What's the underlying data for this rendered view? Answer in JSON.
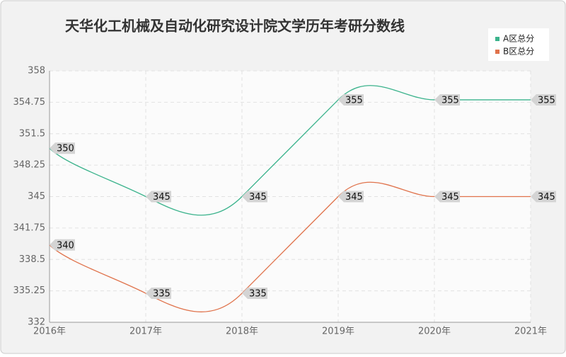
{
  "chart_data": {
    "type": "line",
    "title": "天华化工机械及自动化研究设计院文学历年考研分数线",
    "categories": [
      "2016年",
      "2017年",
      "2018年",
      "2019年",
      "2020年",
      "2021年"
    ],
    "series": [
      {
        "name": "A区总分",
        "color": "#3bb38c",
        "values": [
          350,
          345,
          345,
          355,
          355,
          355
        ]
      },
      {
        "name": "B区总分",
        "color": "#e0734c",
        "values": [
          340,
          335,
          335,
          345,
          345,
          345
        ]
      }
    ],
    "ylim": [
      332,
      358
    ],
    "yticks": [
      332,
      335.25,
      338.5,
      341.75,
      345,
      348.25,
      351.5,
      354.75,
      358
    ],
    "grid": true,
    "legend": "top-right"
  }
}
